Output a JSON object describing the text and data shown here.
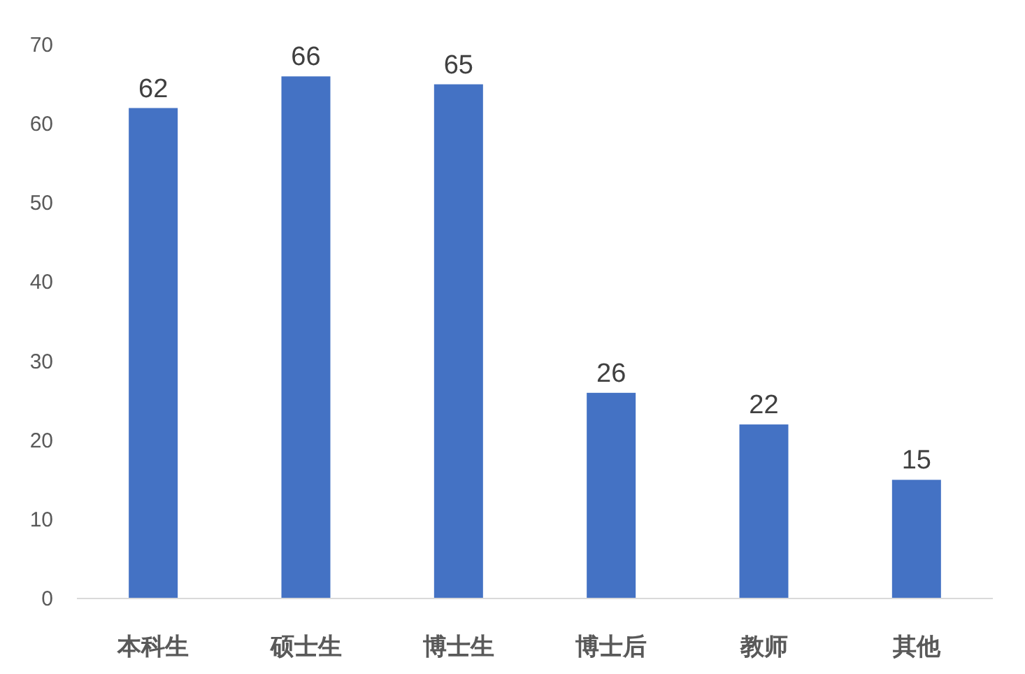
{
  "chart_data": {
    "type": "bar",
    "categories": [
      "本科生",
      "硕士生",
      "博士生",
      "博士后",
      "教师",
      "其他"
    ],
    "values": [
      62,
      66,
      65,
      26,
      22,
      15
    ],
    "color": "#4472c4",
    "ylim": [
      0,
      70
    ],
    "yticks": [
      0,
      10,
      20,
      30,
      40,
      50,
      60,
      70
    ],
    "data_labels": true
  }
}
